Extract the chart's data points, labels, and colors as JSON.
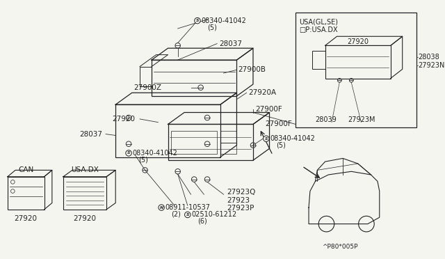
{
  "bg_color": "#f5f5f0",
  "dc": "#222222",
  "lc": "#333333",
  "fig_w": 6.4,
  "fig_h": 3.72,
  "dpi": 100,
  "diagram_code": "^P80*005P",
  "inset_title_line1": "USA(GL,SE)",
  "inset_title_line2": "□P:USA.DX",
  "labels": {
    "08340_top": [
      "S",
      "08340-41042",
      "(5)"
    ],
    "27900Z": "27900Z",
    "28037_top": "28037",
    "27900B": "27900B",
    "27920_main": "27920",
    "27920A": "27920A",
    "27900F_main": "27900F",
    "28037_left": "28037",
    "08340_left": [
      "S",
      "08340-41042",
      "(5)"
    ],
    "08340_right": [
      "S",
      "08340-41042",
      "(5)"
    ],
    "279230": "27923Q",
    "27923": "27923",
    "27923P": "27923P",
    "08510": [
      "S",
      "02510-61212",
      "(6)"
    ],
    "N08911": [
      "N",
      "08911-10537",
      "(2)"
    ],
    "can": "CAN",
    "usa_dx": "USA.DX",
    "27920_can": "27920",
    "27920_usa": "27920",
    "inset_27920": "27920",
    "inset_28038": "28038",
    "inset_27923N": "27923N",
    "inset_28039": "28039",
    "inset_27923M": "27923M"
  }
}
